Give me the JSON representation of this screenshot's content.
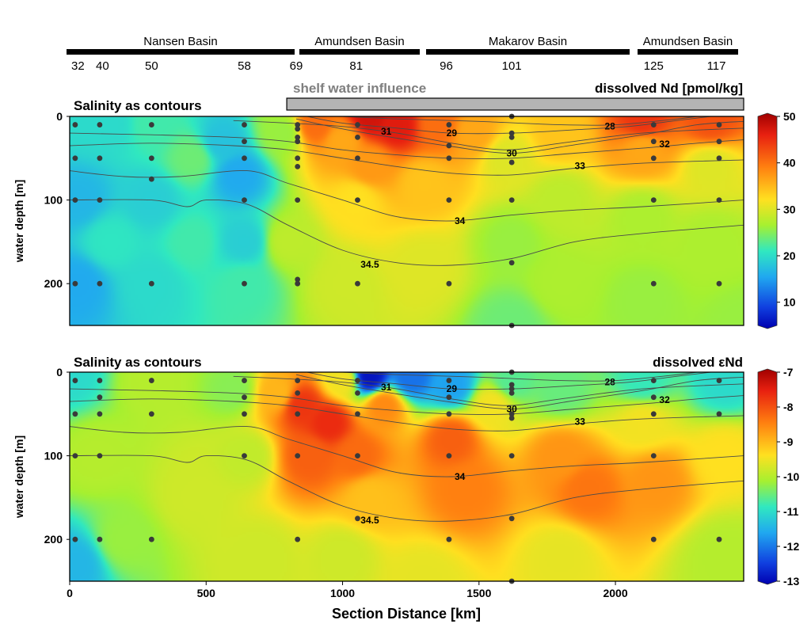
{
  "basins": [
    {
      "name": "Nansen Basin",
      "stations": [
        "32",
        "40",
        "50",
        "58",
        "69"
      ],
      "station_km": [
        30,
        120,
        300,
        640,
        830
      ]
    },
    {
      "name": "Amundsen Basin",
      "stations": [
        "81"
      ],
      "station_km": [
        1050
      ]
    },
    {
      "name": "Makarov Basin",
      "stations": [
        "96",
        "101"
      ],
      "station_km": [
        1380,
        1620
      ]
    },
    {
      "name": "Amundsen Basin",
      "stations": [
        "125",
        "117"
      ],
      "station_km": [
        2140,
        2370
      ]
    }
  ],
  "shelf_label": "shelf water influence",
  "shelf_range_km": [
    810,
    2470
  ],
  "x_axis": {
    "label": "Section Distance [km]",
    "range": [
      0,
      2470
    ],
    "ticks": [
      "0",
      "500",
      "1000",
      "1500",
      "2000"
    ],
    "tick_values": [
      0,
      500,
      1000,
      1500,
      2000
    ]
  },
  "y_axis": {
    "label": "water depth [m]",
    "range": [
      0,
      250
    ],
    "ticks": [
      "0",
      "100",
      "200"
    ],
    "tick_values": [
      0,
      100,
      200
    ]
  },
  "colors": {
    "shelf_bar": "#b4b4b4",
    "shelf_text": "#7f7f7f",
    "sample_dot": "#3a3a3a",
    "contour": "#4a4a4a"
  },
  "chart_data": [
    {
      "type": "heatmap",
      "title": "Salinity as contours",
      "variable": "dissolved Nd [pmol/kg]",
      "colorbar": {
        "ticks": [
          "50",
          "40",
          "30",
          "20",
          "10"
        ],
        "tick_values": [
          50,
          40,
          30,
          20,
          10
        ],
        "range": [
          5,
          50
        ]
      },
      "field_nodes": [
        {
          "x": 0,
          "y": 0,
          "v": 20
        },
        {
          "x": 30,
          "y": 100,
          "v": 17
        },
        {
          "x": 30,
          "y": 200,
          "v": 16
        },
        {
          "x": 150,
          "y": 10,
          "v": 20
        },
        {
          "x": 150,
          "y": 150,
          "v": 21
        },
        {
          "x": 300,
          "y": 10,
          "v": 22
        },
        {
          "x": 300,
          "y": 100,
          "v": 19
        },
        {
          "x": 300,
          "y": 200,
          "v": 20
        },
        {
          "x": 450,
          "y": 50,
          "v": 24
        },
        {
          "x": 450,
          "y": 150,
          "v": 22
        },
        {
          "x": 560,
          "y": 30,
          "v": 18
        },
        {
          "x": 620,
          "y": 70,
          "v": 16
        },
        {
          "x": 640,
          "y": 150,
          "v": 19
        },
        {
          "x": 640,
          "y": 200,
          "v": 22
        },
        {
          "x": 780,
          "y": 20,
          "v": 26
        },
        {
          "x": 800,
          "y": 150,
          "v": 28
        },
        {
          "x": 900,
          "y": 10,
          "v": 40
        },
        {
          "x": 1000,
          "y": 30,
          "v": 36
        },
        {
          "x": 1100,
          "y": 0,
          "v": 47
        },
        {
          "x": 1200,
          "y": 10,
          "v": 46
        },
        {
          "x": 1350,
          "y": 10,
          "v": 40
        },
        {
          "x": 1100,
          "y": 60,
          "v": 37
        },
        {
          "x": 1050,
          "y": 100,
          "v": 32
        },
        {
          "x": 1000,
          "y": 200,
          "v": 29
        },
        {
          "x": 1300,
          "y": 80,
          "v": 34
        },
        {
          "x": 1300,
          "y": 180,
          "v": 30
        },
        {
          "x": 1480,
          "y": 20,
          "v": 36
        },
        {
          "x": 1600,
          "y": 50,
          "v": 30
        },
        {
          "x": 1620,
          "y": 150,
          "v": 26
        },
        {
          "x": 1620,
          "y": 250,
          "v": 24
        },
        {
          "x": 1800,
          "y": 20,
          "v": 34
        },
        {
          "x": 1800,
          "y": 100,
          "v": 28
        },
        {
          "x": 1800,
          "y": 200,
          "v": 27
        },
        {
          "x": 2100,
          "y": 5,
          "v": 44
        },
        {
          "x": 2100,
          "y": 40,
          "v": 36
        },
        {
          "x": 2100,
          "y": 120,
          "v": 27
        },
        {
          "x": 2100,
          "y": 220,
          "v": 26
        },
        {
          "x": 2350,
          "y": 5,
          "v": 42
        },
        {
          "x": 2350,
          "y": 60,
          "v": 30
        },
        {
          "x": 2350,
          "y": 150,
          "v": 27
        },
        {
          "x": 2470,
          "y": 250,
          "v": 26
        }
      ],
      "samples": [
        {
          "x": 20,
          "y": 10
        },
        {
          "x": 20,
          "y": 50
        },
        {
          "x": 20,
          "y": 100
        },
        {
          "x": 20,
          "y": 200
        },
        {
          "x": 110,
          "y": 10
        },
        {
          "x": 110,
          "y": 50
        },
        {
          "x": 110,
          "y": 100
        },
        {
          "x": 110,
          "y": 200
        },
        {
          "x": 300,
          "y": 10
        },
        {
          "x": 300,
          "y": 50
        },
        {
          "x": 300,
          "y": 75
        },
        {
          "x": 300,
          "y": 200
        },
        {
          "x": 640,
          "y": 10
        },
        {
          "x": 640,
          "y": 30
        },
        {
          "x": 640,
          "y": 50
        },
        {
          "x": 640,
          "y": 100
        },
        {
          "x": 640,
          "y": 200
        },
        {
          "x": 835,
          "y": 10
        },
        {
          "x": 835,
          "y": 15
        },
        {
          "x": 835,
          "y": 25
        },
        {
          "x": 835,
          "y": 30
        },
        {
          "x": 835,
          "y": 50
        },
        {
          "x": 835,
          "y": 60
        },
        {
          "x": 835,
          "y": 100
        },
        {
          "x": 835,
          "y": 195
        },
        {
          "x": 835,
          "y": 200
        },
        {
          "x": 1055,
          "y": 10
        },
        {
          "x": 1055,
          "y": 25
        },
        {
          "x": 1055,
          "y": 50
        },
        {
          "x": 1055,
          "y": 100
        },
        {
          "x": 1055,
          "y": 200
        },
        {
          "x": 1390,
          "y": 10
        },
        {
          "x": 1390,
          "y": 35
        },
        {
          "x": 1390,
          "y": 50
        },
        {
          "x": 1390,
          "y": 100
        },
        {
          "x": 1390,
          "y": 200
        },
        {
          "x": 1620,
          "y": 0
        },
        {
          "x": 1620,
          "y": 20
        },
        {
          "x": 1620,
          "y": 25
        },
        {
          "x": 1620,
          "y": 55
        },
        {
          "x": 1620,
          "y": 100
        },
        {
          "x": 1620,
          "y": 175
        },
        {
          "x": 1620,
          "y": 250
        },
        {
          "x": 2140,
          "y": 10
        },
        {
          "x": 2140,
          "y": 30
        },
        {
          "x": 2140,
          "y": 50
        },
        {
          "x": 2140,
          "y": 100
        },
        {
          "x": 2140,
          "y": 200
        },
        {
          "x": 2380,
          "y": 10
        },
        {
          "x": 2380,
          "y": 30
        },
        {
          "x": 2380,
          "y": 50
        },
        {
          "x": 2380,
          "y": 100
        },
        {
          "x": 2380,
          "y": 200
        }
      ]
    },
    {
      "type": "heatmap",
      "title": "Salinity as contours",
      "variable": "dissolved εNd",
      "colorbar": {
        "ticks": [
          "-7",
          "-8",
          "-9",
          "-10",
          "-11",
          "-12",
          "-13"
        ],
        "tick_values": [
          -7,
          -8,
          -9,
          -10,
          -11,
          -12,
          -13
        ],
        "range": [
          -13,
          -7
        ]
      },
      "field_nodes": [
        {
          "x": 0,
          "y": 0,
          "v": -11.0
        },
        {
          "x": 20,
          "y": 230,
          "v": -11.4
        },
        {
          "x": 100,
          "y": 100,
          "v": -10.0
        },
        {
          "x": 200,
          "y": 200,
          "v": -10.2
        },
        {
          "x": 300,
          "y": 10,
          "v": -10.0
        },
        {
          "x": 450,
          "y": 150,
          "v": -9.8
        },
        {
          "x": 600,
          "y": 20,
          "v": -10.3
        },
        {
          "x": 650,
          "y": 100,
          "v": -9.9
        },
        {
          "x": 700,
          "y": 220,
          "v": -9.8
        },
        {
          "x": 760,
          "y": 25,
          "v": -9.0
        },
        {
          "x": 850,
          "y": 40,
          "v": -7.8
        },
        {
          "x": 950,
          "y": 60,
          "v": -7.7
        },
        {
          "x": 880,
          "y": 100,
          "v": -8.2
        },
        {
          "x": 1000,
          "y": 10,
          "v": -9.5
        },
        {
          "x": 1100,
          "y": 5,
          "v": -12.8
        },
        {
          "x": 1250,
          "y": 5,
          "v": -12.0
        },
        {
          "x": 1400,
          "y": 15,
          "v": -11.6
        },
        {
          "x": 1150,
          "y": 40,
          "v": -8.6
        },
        {
          "x": 1050,
          "y": 100,
          "v": -8.3
        },
        {
          "x": 1100,
          "y": 150,
          "v": -9.1
        },
        {
          "x": 1000,
          "y": 220,
          "v": -9.8
        },
        {
          "x": 1400,
          "y": 80,
          "v": -8.2
        },
        {
          "x": 1450,
          "y": 140,
          "v": -8.5
        },
        {
          "x": 1550,
          "y": 40,
          "v": -9.5
        },
        {
          "x": 1620,
          "y": 10,
          "v": -10.6
        },
        {
          "x": 1800,
          "y": 20,
          "v": -10.5
        },
        {
          "x": 1800,
          "y": 100,
          "v": -8.7
        },
        {
          "x": 1900,
          "y": 140,
          "v": -8.4
        },
        {
          "x": 1800,
          "y": 220,
          "v": -9.6
        },
        {
          "x": 2100,
          "y": 10,
          "v": -10.8
        },
        {
          "x": 2100,
          "y": 60,
          "v": -9.5
        },
        {
          "x": 2150,
          "y": 130,
          "v": -8.7
        },
        {
          "x": 2400,
          "y": 10,
          "v": -11.0
        },
        {
          "x": 2400,
          "y": 100,
          "v": -9.4
        },
        {
          "x": 2400,
          "y": 220,
          "v": -10.0
        },
        {
          "x": 1300,
          "y": 250,
          "v": -9.6
        },
        {
          "x": 2470,
          "y": 250,
          "v": -10.0
        }
      ],
      "samples": [
        {
          "x": 20,
          "y": 10
        },
        {
          "x": 20,
          "y": 50
        },
        {
          "x": 20,
          "y": 100
        },
        {
          "x": 20,
          "y": 200
        },
        {
          "x": 110,
          "y": 10
        },
        {
          "x": 110,
          "y": 30
        },
        {
          "x": 110,
          "y": 50
        },
        {
          "x": 110,
          "y": 100
        },
        {
          "x": 110,
          "y": 200
        },
        {
          "x": 300,
          "y": 10
        },
        {
          "x": 300,
          "y": 50
        },
        {
          "x": 300,
          "y": 200
        },
        {
          "x": 640,
          "y": 10
        },
        {
          "x": 640,
          "y": 30
        },
        {
          "x": 640,
          "y": 50
        },
        {
          "x": 640,
          "y": 100
        },
        {
          "x": 835,
          "y": 10
        },
        {
          "x": 835,
          "y": 25
        },
        {
          "x": 835,
          "y": 50
        },
        {
          "x": 835,
          "y": 100
        },
        {
          "x": 835,
          "y": 200
        },
        {
          "x": 1055,
          "y": 10
        },
        {
          "x": 1055,
          "y": 25
        },
        {
          "x": 1055,
          "y": 50
        },
        {
          "x": 1055,
          "y": 100
        },
        {
          "x": 1055,
          "y": 175
        },
        {
          "x": 1390,
          "y": 10
        },
        {
          "x": 1390,
          "y": 30
        },
        {
          "x": 1390,
          "y": 50
        },
        {
          "x": 1390,
          "y": 100
        },
        {
          "x": 1390,
          "y": 200
        },
        {
          "x": 1620,
          "y": 0
        },
        {
          "x": 1620,
          "y": 15
        },
        {
          "x": 1620,
          "y": 20
        },
        {
          "x": 1620,
          "y": 25
        },
        {
          "x": 1620,
          "y": 50
        },
        {
          "x": 1620,
          "y": 55
        },
        {
          "x": 1620,
          "y": 100
        },
        {
          "x": 1620,
          "y": 175
        },
        {
          "x": 1620,
          "y": 250
        },
        {
          "x": 2140,
          "y": 10
        },
        {
          "x": 2140,
          "y": 30
        },
        {
          "x": 2140,
          "y": 50
        },
        {
          "x": 2140,
          "y": 100
        },
        {
          "x": 2140,
          "y": 200
        },
        {
          "x": 2380,
          "y": 10
        },
        {
          "x": 2380,
          "y": 50
        },
        {
          "x": 2380,
          "y": 200
        }
      ]
    }
  ],
  "salinity_contours": [
    {
      "label": "28",
      "label_at": [
        1980,
        12
      ],
      "points": [
        [
          1000,
          0
        ],
        [
          1200,
          3
        ],
        [
          1500,
          6
        ],
        [
          1800,
          10
        ],
        [
          2000,
          10
        ],
        [
          2200,
          4
        ],
        [
          2300,
          0
        ]
      ]
    },
    {
      "label": "29",
      "label_at": [
        1400,
        20
      ],
      "points": [
        [
          870,
          0
        ],
        [
          1000,
          8
        ],
        [
          1200,
          14
        ],
        [
          1400,
          20
        ],
        [
          1620,
          20
        ],
        [
          1850,
          16
        ],
        [
          2050,
          12
        ],
        [
          2200,
          6
        ],
        [
          2350,
          0
        ]
      ]
    },
    {
      "label": "30",
      "label_at": [
        1620,
        44
      ],
      "points": [
        [
          830,
          3
        ],
        [
          1000,
          15
        ],
        [
          1200,
          26
        ],
        [
          1400,
          36
        ],
        [
          1620,
          44
        ],
        [
          1850,
          34
        ],
        [
          2100,
          22
        ],
        [
          2300,
          10
        ],
        [
          2470,
          6
        ]
      ]
    },
    {
      "label": "31",
      "label_at": [
        1160,
        18
      ],
      "points": [
        [
          600,
          5
        ],
        [
          800,
          8
        ],
        [
          1000,
          12
        ],
        [
          1200,
          20
        ],
        [
          1400,
          32
        ],
        [
          1600,
          40
        ],
        [
          1800,
          32
        ],
        [
          2100,
          20
        ],
        [
          2470,
          14
        ]
      ]
    },
    {
      "label": "32",
      "label_at": [
        2180,
        33
      ],
      "points": [
        [
          0,
          20
        ],
        [
          300,
          22
        ],
        [
          600,
          25
        ],
        [
          800,
          30
        ],
        [
          1000,
          40
        ],
        [
          1200,
          46
        ],
        [
          1400,
          50
        ],
        [
          1620,
          50
        ],
        [
          1850,
          44
        ],
        [
          2100,
          38
        ],
        [
          2300,
          32
        ],
        [
          2470,
          28
        ]
      ]
    },
    {
      "label": "33",
      "label_at": [
        1870,
        59
      ],
      "points": [
        [
          0,
          35
        ],
        [
          300,
          32
        ],
        [
          600,
          35
        ],
        [
          800,
          40
        ],
        [
          1000,
          50
        ],
        [
          1200,
          60
        ],
        [
          1400,
          68
        ],
        [
          1620,
          70
        ],
        [
          1850,
          62
        ],
        [
          2100,
          56
        ],
        [
          2470,
          52
        ]
      ]
    },
    {
      "label": "34",
      "label_at": [
        1430,
        125
      ],
      "points": [
        [
          0,
          65
        ],
        [
          200,
          72
        ],
        [
          400,
          72
        ],
        [
          650,
          65
        ],
        [
          800,
          80
        ],
        [
          1000,
          100
        ],
        [
          1200,
          120
        ],
        [
          1400,
          125
        ],
        [
          1620,
          118
        ],
        [
          1850,
          112
        ],
        [
          2100,
          108
        ],
        [
          2470,
          100
        ]
      ]
    },
    {
      "label": "34.5",
      "label_at": [
        1100,
        177
      ],
      "points": [
        [
          0,
          100
        ],
        [
          300,
          100
        ],
        [
          430,
          108
        ],
        [
          500,
          100
        ],
        [
          650,
          105
        ],
        [
          800,
          130
        ],
        [
          1000,
          160
        ],
        [
          1200,
          175
        ],
        [
          1400,
          178
        ],
        [
          1620,
          170
        ],
        [
          1850,
          150
        ],
        [
          2100,
          140
        ],
        [
          2470,
          130
        ]
      ]
    }
  ]
}
